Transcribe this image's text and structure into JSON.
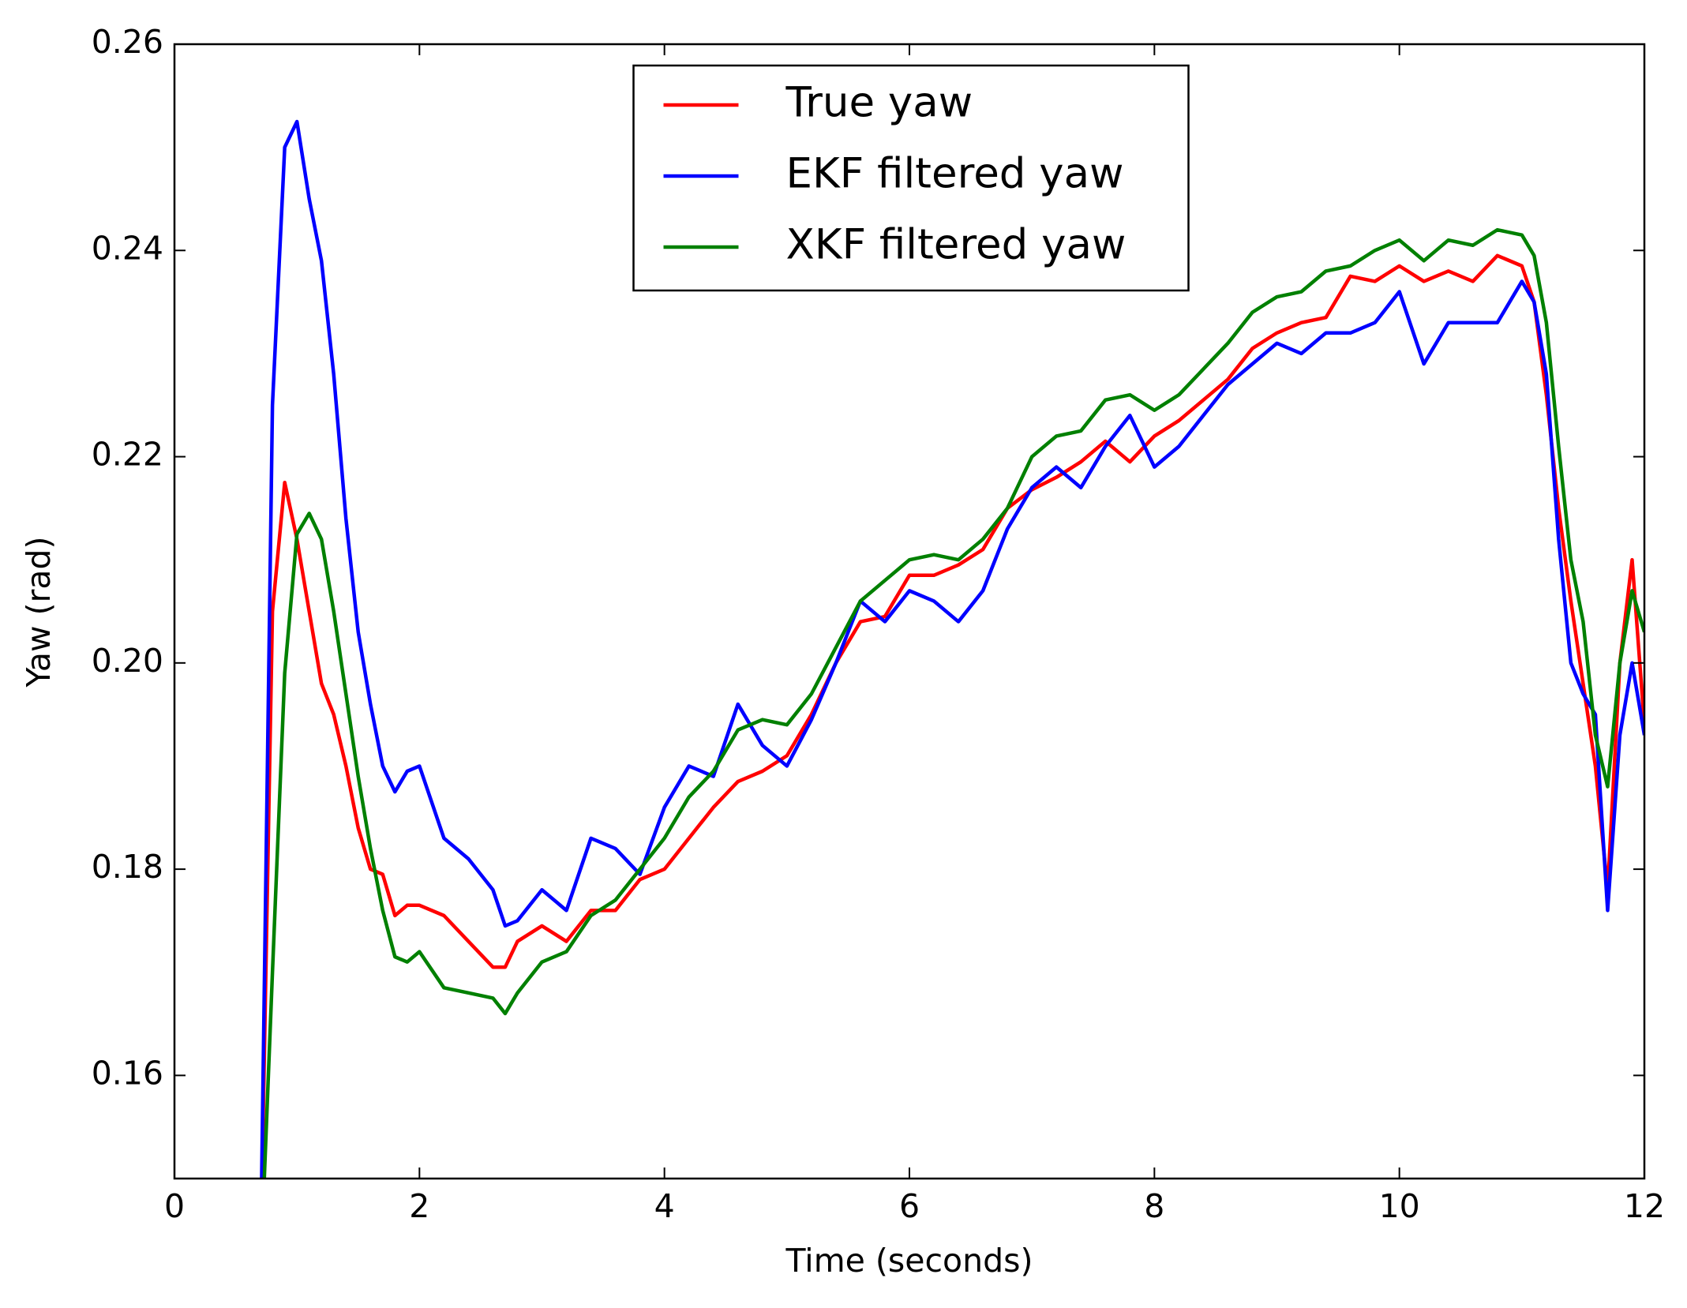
{
  "chart_data": {
    "type": "line",
    "xlabel": "Time (seconds)",
    "ylabel": "Yaw (rad)",
    "x": [
      0.7,
      0.8,
      0.9,
      1.0,
      1.1,
      1.2,
      1.3,
      1.4,
      1.5,
      1.6,
      1.7,
      1.8,
      1.9,
      2.0,
      2.2,
      2.4,
      2.6,
      2.7,
      2.8,
      3.0,
      3.2,
      3.4,
      3.6,
      3.8,
      4.0,
      4.2,
      4.4,
      4.6,
      4.8,
      5.0,
      5.2,
      5.4,
      5.6,
      5.8,
      6.0,
      6.2,
      6.4,
      6.6,
      6.8,
      7.0,
      7.2,
      7.4,
      7.6,
      7.8,
      8.0,
      8.2,
      8.4,
      8.6,
      8.8,
      9.0,
      9.2,
      9.4,
      9.6,
      9.8,
      10.0,
      10.2,
      10.4,
      10.6,
      10.8,
      11.0,
      11.1,
      11.2,
      11.3,
      11.4,
      11.5,
      11.6,
      11.7,
      11.8,
      11.9,
      12.0
    ],
    "series": [
      {
        "name": "True yaw",
        "color": "#ff0000",
        "values": [
          0.14,
          0.205,
          0.2175,
          0.212,
          0.205,
          0.198,
          0.195,
          0.19,
          0.184,
          0.18,
          0.1795,
          0.1755,
          0.1765,
          0.1765,
          0.1755,
          0.173,
          0.1705,
          0.1705,
          0.173,
          0.1745,
          0.173,
          0.176,
          0.176,
          0.179,
          0.18,
          0.183,
          0.186,
          0.1885,
          0.1895,
          0.191,
          0.195,
          0.2,
          0.204,
          0.2045,
          0.2085,
          0.2085,
          0.2095,
          0.211,
          0.215,
          0.2168,
          0.218,
          0.2195,
          0.2215,
          0.2195,
          0.222,
          0.2235,
          0.2255,
          0.2275,
          0.2305,
          0.232,
          0.233,
          0.2335,
          0.2375,
          0.237,
          0.2385,
          0.237,
          0.238,
          0.237,
          0.2395,
          0.2385,
          0.235,
          0.226,
          0.215,
          0.206,
          0.198,
          0.19,
          0.178,
          0.2,
          0.21,
          0.194
        ]
      },
      {
        "name": "EKF filtered yaw",
        "color": "#0000ff",
        "values": [
          0.14,
          0.225,
          0.25,
          0.2525,
          0.245,
          0.239,
          0.228,
          0.214,
          0.203,
          0.196,
          0.19,
          0.1875,
          0.1895,
          0.19,
          0.183,
          0.181,
          0.178,
          0.1745,
          0.175,
          0.178,
          0.176,
          0.183,
          0.182,
          0.1795,
          0.186,
          0.19,
          0.189,
          0.196,
          0.192,
          0.19,
          0.1945,
          0.2,
          0.206,
          0.204,
          0.207,
          0.206,
          0.204,
          0.207,
          0.213,
          0.217,
          0.219,
          0.217,
          0.221,
          0.224,
          0.219,
          0.221,
          0.224,
          0.227,
          0.229,
          0.231,
          0.23,
          0.232,
          0.232,
          0.233,
          0.236,
          0.229,
          0.233,
          0.233,
          0.233,
          0.237,
          0.235,
          0.228,
          0.212,
          0.2,
          0.197,
          0.195,
          0.176,
          0.193,
          0.2,
          0.193
        ]
      },
      {
        "name": "XKF filtered yaw",
        "color": "#008000",
        "values": [
          0.14,
          0.17,
          0.199,
          0.2125,
          0.2145,
          0.212,
          0.205,
          0.197,
          0.189,
          0.182,
          0.176,
          0.1715,
          0.171,
          0.172,
          0.1685,
          0.168,
          0.1675,
          0.166,
          0.168,
          0.171,
          0.172,
          0.1755,
          0.177,
          0.18,
          0.183,
          0.187,
          0.1895,
          0.1935,
          0.1945,
          0.194,
          0.197,
          0.2015,
          0.206,
          0.208,
          0.21,
          0.2105,
          0.21,
          0.212,
          0.215,
          0.22,
          0.222,
          0.2225,
          0.2255,
          0.226,
          0.2245,
          0.226,
          0.2285,
          0.231,
          0.234,
          0.2355,
          0.236,
          0.238,
          0.2385,
          0.24,
          0.241,
          0.239,
          0.241,
          0.2405,
          0.242,
          0.2415,
          0.2395,
          0.233,
          0.221,
          0.21,
          0.204,
          0.193,
          0.188,
          0.2,
          0.207,
          0.203
        ]
      }
    ],
    "xlim": [
      0,
      12
    ],
    "xticks": [
      0,
      2,
      4,
      6,
      8,
      10,
      12
    ],
    "ylim": [
      0.15,
      0.26
    ],
    "yticks": [
      0.16,
      0.18,
      {
        "value": 0.2,
        "label": "0.20"
      },
      0.22,
      0.24,
      0.26
    ],
    "legend": "upper center",
    "grid": false
  }
}
